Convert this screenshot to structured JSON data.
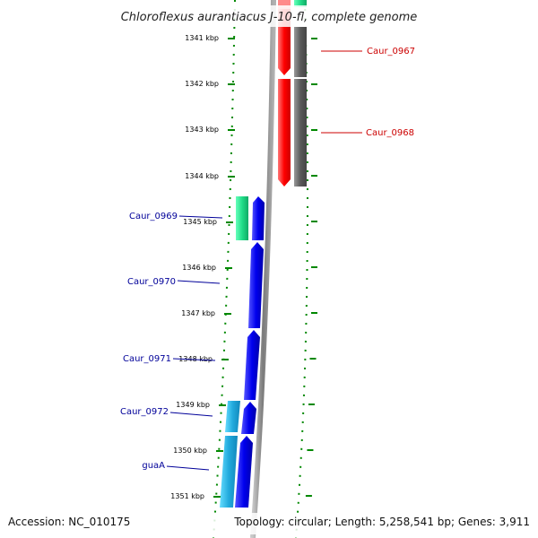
{
  "title": "Chloroflexus aurantiacus J-10-fl, complete genome",
  "footer": {
    "accession": "Accession: NC_010175",
    "topology": "Topology: circular; Length: 5,258,541 bp; Genes: 3,911"
  },
  "ticks": [
    "1341 kbp",
    "1342 kbp",
    "1343 kbp",
    "1344 kbp",
    "1345 kbp",
    "1346 kbp",
    "1347 kbp",
    "1348 kbp",
    "1349 kbp",
    "1350 kbp",
    "1351 kbp"
  ],
  "genes": [
    {
      "id": "Caur_0967",
      "label": "Caur_0967",
      "color": "#cc0000",
      "strand": "reverse"
    },
    {
      "id": "Caur_0968",
      "label": "Caur_0968",
      "color": "#cc0000",
      "strand": "reverse"
    },
    {
      "id": "Caur_0969",
      "label": "Caur_0969",
      "color": "#000099",
      "strand": "forward"
    },
    {
      "id": "Caur_0970",
      "label": "Caur_0970",
      "color": "#000099",
      "strand": "forward"
    },
    {
      "id": "Caur_0971",
      "label": "Caur_0971",
      "color": "#000099",
      "strand": "forward"
    },
    {
      "id": "Caur_0972",
      "label": "Caur_0972",
      "color": "#000099",
      "strand": "forward"
    },
    {
      "id": "guaA",
      "label": "guaA",
      "color": "#000099",
      "strand": "forward"
    }
  ],
  "colors": {
    "reverse_cds": "#ff0000",
    "forward_cds": "#0000ee",
    "reverse_rna": "#5a5a5a",
    "forward_rna_green": "#22dd88",
    "forward_rna_cyan": "#22aadd",
    "tick_green": "#008800",
    "backbone": "#8a8a8a"
  }
}
